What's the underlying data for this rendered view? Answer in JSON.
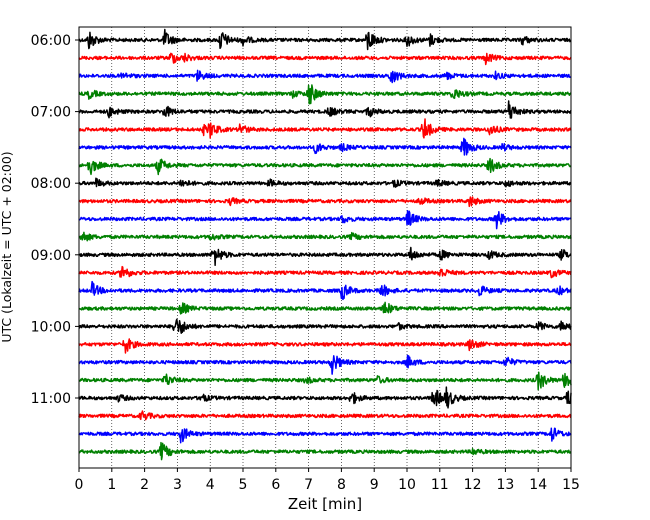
{
  "chart_data": {
    "type": "line",
    "title": "",
    "xlabel": "Zeit  [min]",
    "ylabel": "UTC (Lokalzeit = UTC + 02:00)",
    "xlim": [
      0,
      15
    ],
    "x_ticks": [
      "0",
      "1",
      "2",
      "3",
      "4",
      "5",
      "6",
      "7",
      "8",
      "9",
      "10",
      "11",
      "12",
      "13",
      "14",
      "15"
    ],
    "y_ticks": [
      {
        "label": "06:00",
        "trace": 0
      },
      {
        "label": "07:00",
        "trace": 4
      },
      {
        "label": "08:00",
        "trace": 8
      },
      {
        "label": "09:00",
        "trace": 12
      },
      {
        "label": "10:00",
        "trace": 16
      },
      {
        "label": "11:00",
        "trace": 20
      }
    ],
    "grid": "vertical dotted",
    "trace_interval_minutes": 15,
    "trace_colors": [
      "#000000",
      "#ff0000",
      "#0000ff",
      "#008000"
    ],
    "series": [
      {
        "start": "06:00",
        "events": [
          [
            0.3,
            0.9
          ],
          [
            2.6,
            0.9
          ],
          [
            4.3,
            1.0
          ],
          [
            5.0,
            0.4
          ],
          [
            8.8,
            1.1
          ],
          [
            10.0,
            0.6
          ],
          [
            10.7,
            0.5
          ],
          [
            13.5,
            0.4
          ]
        ]
      },
      {
        "start": "06:15",
        "events": [
          [
            2.8,
            0.6
          ],
          [
            3.2,
            0.3
          ],
          [
            12.4,
            0.5
          ]
        ]
      },
      {
        "start": "06:30",
        "events": [
          [
            1.3,
            0.3
          ],
          [
            3.6,
            0.5
          ],
          [
            9.5,
            0.8
          ],
          [
            11.2,
            0.3
          ],
          [
            12.7,
            0.3
          ]
        ]
      },
      {
        "start": "06:45",
        "events": [
          [
            0.3,
            0.4
          ],
          [
            6.5,
            0.3
          ],
          [
            7.0,
            1.2
          ],
          [
            11.4,
            0.6
          ]
        ]
      },
      {
        "start": "07:00",
        "events": [
          [
            0.9,
            0.5
          ],
          [
            2.6,
            0.6
          ],
          [
            7.6,
            0.5
          ],
          [
            8.8,
            0.5
          ],
          [
            13.1,
            1.0
          ]
        ]
      },
      {
        "start": "07:15",
        "events": [
          [
            3.8,
            0.4
          ],
          [
            4.0,
            0.6
          ],
          [
            4.9,
            0.5
          ],
          [
            10.5,
            1.1
          ],
          [
            12.5,
            0.6
          ]
        ]
      },
      {
        "start": "07:30",
        "events": [
          [
            7.2,
            0.5
          ],
          [
            8.0,
            0.3
          ],
          [
            11.7,
            1.1
          ],
          [
            12.9,
            0.3
          ]
        ]
      },
      {
        "start": "07:45",
        "events": [
          [
            0.3,
            1.0
          ],
          [
            2.4,
            0.8
          ],
          [
            12.5,
            0.8
          ]
        ]
      },
      {
        "start": "08:00",
        "events": [
          [
            0.5,
            0.4
          ],
          [
            3.1,
            0.4
          ],
          [
            5.8,
            0.3
          ],
          [
            9.6,
            0.3
          ],
          [
            10.9,
            0.3
          ],
          [
            13.0,
            0.3
          ]
        ]
      },
      {
        "start": "08:15",
        "events": [
          [
            4.6,
            0.3
          ],
          [
            10.4,
            0.3
          ],
          [
            11.9,
            0.5
          ]
        ]
      },
      {
        "start": "08:30",
        "events": [
          [
            8.0,
            0.4
          ],
          [
            10.0,
            0.9
          ],
          [
            12.7,
            1.0
          ]
        ]
      },
      {
        "start": "08:45",
        "events": [
          [
            0.1,
            0.5
          ],
          [
            4.0,
            0.3
          ],
          [
            8.3,
            0.3
          ]
        ]
      },
      {
        "start": "09:00",
        "events": [
          [
            4.1,
            1.1
          ],
          [
            10.1,
            0.6
          ],
          [
            11.0,
            0.5
          ],
          [
            12.5,
            0.4
          ],
          [
            14.7,
            0.5
          ]
        ]
      },
      {
        "start": "09:15",
        "events": [
          [
            1.3,
            0.8
          ],
          [
            11.0,
            0.5
          ],
          [
            14.4,
            0.4
          ]
        ]
      },
      {
        "start": "09:30",
        "events": [
          [
            0.4,
            0.7
          ],
          [
            8.0,
            0.9
          ],
          [
            9.2,
            0.7
          ],
          [
            12.2,
            0.5
          ],
          [
            14.6,
            0.4
          ]
        ]
      },
      {
        "start": "09:45",
        "events": [
          [
            3.1,
            0.6
          ],
          [
            9.3,
            0.7
          ]
        ]
      },
      {
        "start": "10:00",
        "events": [
          [
            2.9,
            1.0
          ],
          [
            3.1,
            0.3
          ],
          [
            9.7,
            0.3
          ],
          [
            14.0,
            0.4
          ],
          [
            14.7,
            0.5
          ]
        ]
      },
      {
        "start": "10:15",
        "events": [
          [
            1.4,
            0.8
          ],
          [
            11.9,
            0.6
          ]
        ]
      },
      {
        "start": "10:30",
        "events": [
          [
            7.7,
            1.1
          ],
          [
            10.0,
            0.6
          ],
          [
            13.0,
            0.5
          ]
        ]
      },
      {
        "start": "10:45",
        "events": [
          [
            2.6,
            0.7
          ],
          [
            6.9,
            0.3
          ],
          [
            9.1,
            0.3
          ],
          [
            14.0,
            1.0
          ],
          [
            14.8,
            1.0
          ]
        ]
      },
      {
        "start": "11:00",
        "events": [
          [
            1.2,
            0.3
          ],
          [
            3.7,
            0.4
          ],
          [
            8.3,
            0.6
          ],
          [
            10.8,
            1.1
          ],
          [
            11.2,
            0.9
          ],
          [
            14.9,
            1.0
          ]
        ]
      },
      {
        "start": "11:15",
        "events": [
          [
            1.9,
            0.5
          ]
        ]
      },
      {
        "start": "11:30",
        "events": [
          [
            3.1,
            0.8
          ],
          [
            14.4,
            0.7
          ]
        ]
      },
      {
        "start": "11:45",
        "events": [
          [
            2.5,
            0.9
          ],
          [
            12.0,
            0.3
          ]
        ]
      }
    ]
  }
}
